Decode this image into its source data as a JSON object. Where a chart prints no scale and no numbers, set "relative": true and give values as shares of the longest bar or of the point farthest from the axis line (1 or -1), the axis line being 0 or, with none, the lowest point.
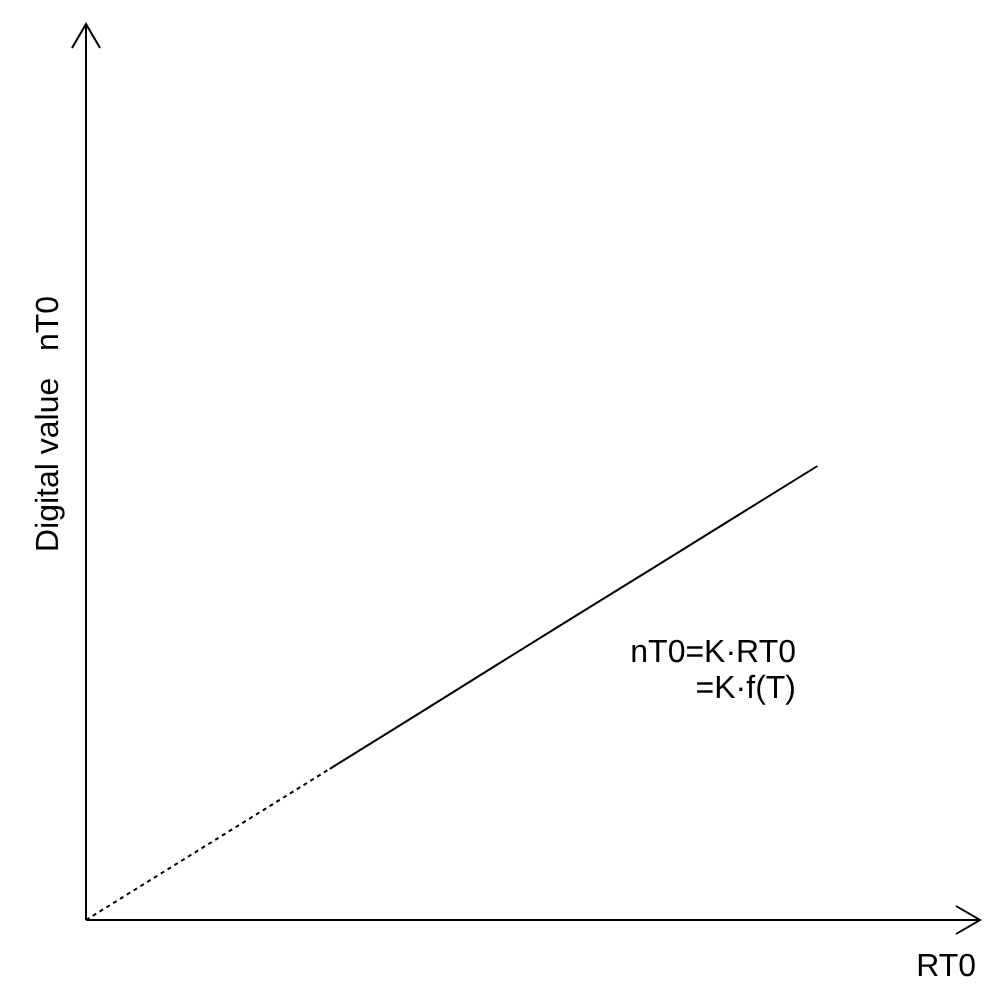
{
  "chart_data": {
    "type": "line",
    "relative": true,
    "xlabel": "RT0",
    "ylabel": "Digital value   nT0",
    "categories": [
      null,
      null,
      null,
      null,
      null,
      null,
      null,
      null,
      null,
      null,
      null,
      null
    ],
    "series": [
      {
        "color": "#000000",
        "line_style": "dotted",
        "values": [
          0,
          0.111,
          0.222,
          0.333,
          null,
          null,
          null,
          null,
          null,
          null,
          null,
          null
        ]
      },
      {
        "color": "#000000",
        "line_style": "solid",
        "values": [
          null,
          null,
          null,
          0.333,
          0.444,
          0.556,
          0.667,
          0.778,
          0.889,
          1,
          null,
          null
        ]
      }
    ],
    "annotations": [
      "nT0=K·RT0",
      "=K·f(T)"
    ]
  }
}
